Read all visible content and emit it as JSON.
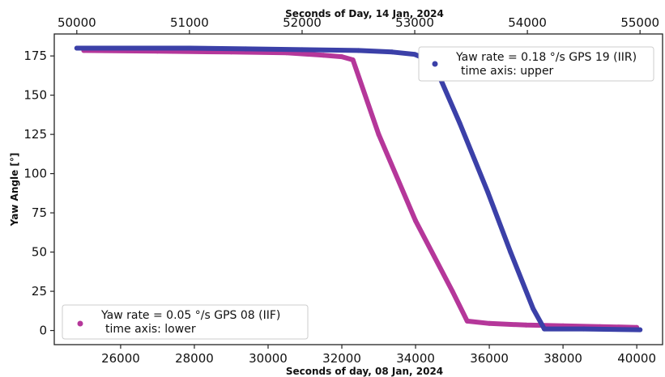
{
  "chart_data": {
    "type": "scatter",
    "x_lower": {
      "label": "Seconds of day, 08 Jan, 2024",
      "range": [
        24200,
        40700
      ],
      "ticks": [
        26000,
        28000,
        30000,
        32000,
        34000,
        36000,
        38000,
        40000
      ],
      "tick_labels": [
        "26000",
        "28000",
        "30000",
        "32000",
        "34000",
        "36000",
        "38000",
        "40000"
      ]
    },
    "x_upper": {
      "label": "Seconds of Day, 14 Jan, 2024",
      "range": [
        49800,
        55200
      ],
      "ticks": [
        50000,
        51000,
        52000,
        53000,
        54000,
        55000
      ],
      "tick_labels": [
        "50000",
        "51000",
        "52000",
        "53000",
        "54000",
        "55000"
      ]
    },
    "y": {
      "label": "Yaw Angle [°]",
      "range": [
        -9,
        189
      ],
      "ticks": [
        0,
        25,
        50,
        75,
        100,
        125,
        150,
        175
      ],
      "tick_labels": [
        "0",
        "25",
        "50",
        "75",
        "100",
        "125",
        "150",
        "175"
      ]
    },
    "grid": false,
    "series": [
      {
        "name": "Yaw rate = 0.05 °/s GPS 08 (IIF)",
        "name_line2": "time axis: lower",
        "axis": "lower",
        "color": "#b5379a",
        "points": [
          [
            25000,
            178.5
          ],
          [
            27000,
            178
          ],
          [
            29000,
            177.5
          ],
          [
            30500,
            177
          ],
          [
            31500,
            175.5
          ],
          [
            32000,
            174.5
          ],
          [
            32300,
            172.5
          ],
          [
            33000,
            125
          ],
          [
            34000,
            70
          ],
          [
            35000,
            25
          ],
          [
            35400,
            6
          ],
          [
            36000,
            4.5
          ],
          [
            37000,
            3.5
          ],
          [
            38000,
            3
          ],
          [
            39000,
            2.5
          ],
          [
            40000,
            2
          ]
        ],
        "legend_position": "lower-left"
      },
      {
        "name": "Yaw rate = 0.18 °/s GPS 19 (IIR)",
        "name_line2": "time axis: upper",
        "axis": "upper",
        "color": "#3b40a8",
        "points": [
          [
            50000,
            180
          ],
          [
            51000,
            180
          ],
          [
            51500,
            179.5
          ],
          [
            52000,
            179
          ],
          [
            52500,
            178.5
          ],
          [
            52800,
            177.5
          ],
          [
            53000,
            176
          ],
          [
            53100,
            173
          ],
          [
            53200,
            165
          ],
          [
            53400,
            132
          ],
          [
            53650,
            88
          ],
          [
            53850,
            50
          ],
          [
            54050,
            14
          ],
          [
            54150,
            1
          ],
          [
            54500,
            1
          ],
          [
            55000,
            0.5
          ]
        ],
        "legend_position": "upper-right"
      }
    ]
  }
}
